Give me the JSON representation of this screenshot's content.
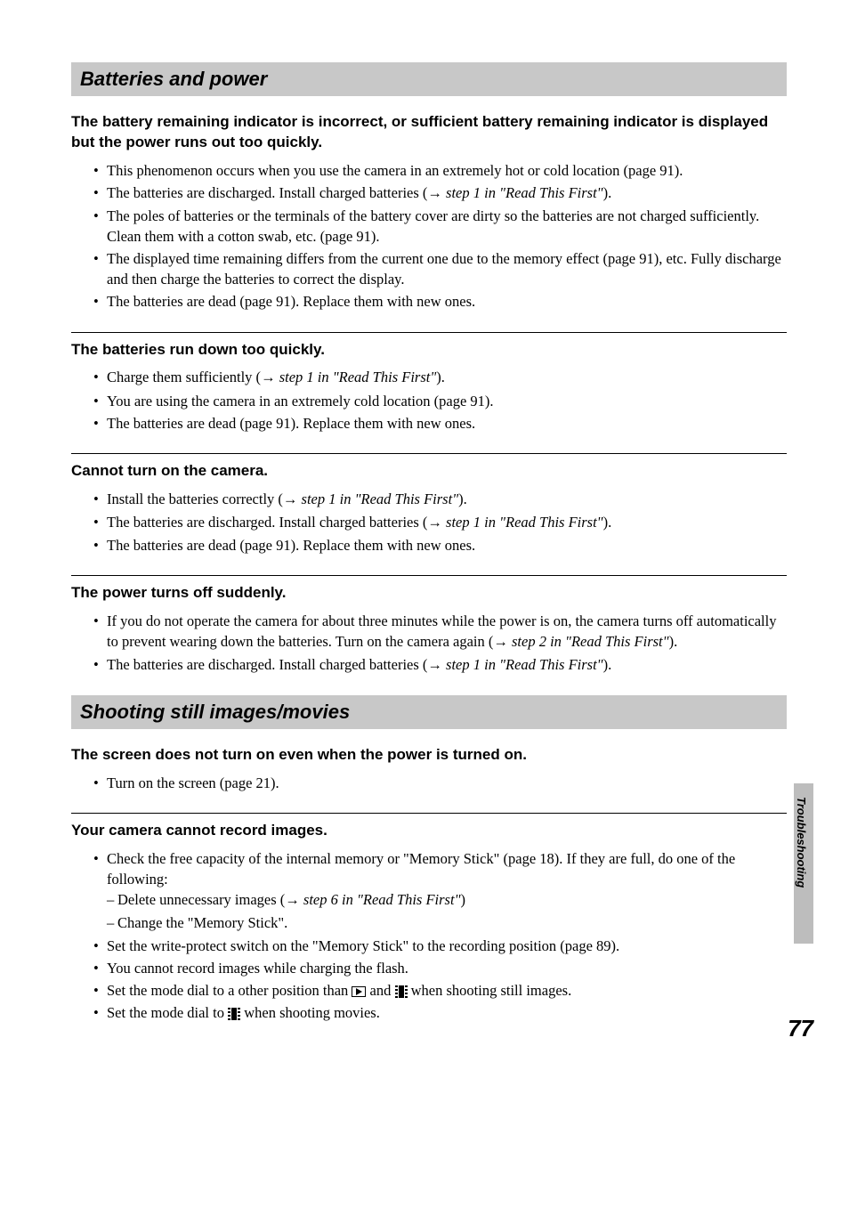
{
  "side_label": "Troubleshooting",
  "page_number": "77",
  "sections": {
    "batteries": {
      "header": "Batteries and power",
      "topics": {
        "t1": {
          "title": "The battery remaining indicator is incorrect, or sufficient battery remaining indicator is displayed but the power runs out too quickly.",
          "b1": "This phenomenon occurs when you use the camera in an extremely hot or cold location (page 91).",
          "b2a": "The batteries are discharged. Install charged batteries (",
          "b2b": "step 1 in \"Read This First\"",
          "b2c": ").",
          "b3": "The poles of batteries or the terminals of the battery cover are dirty so the batteries are not charged sufficiently. Clean them with a cotton swab, etc. (page 91).",
          "b4": "The displayed time remaining differs from the current one due to the memory effect (page 91), etc. Fully discharge and then charge the batteries to correct the display.",
          "b5": "The batteries are dead (page 91). Replace them with new ones."
        },
        "t2": {
          "title": "The batteries run down too quickly.",
          "b1a": "Charge them sufficiently (",
          "b1b": "step 1 in \"Read This First\"",
          "b1c": ").",
          "b2": "You are using the camera in an extremely cold location (page 91).",
          "b3": "The batteries are dead (page 91). Replace them with new ones."
        },
        "t3": {
          "title": "Cannot turn on the camera.",
          "b1a": "Install the batteries correctly (",
          "b1b": "step 1 in \"Read This First\"",
          "b1c": ").",
          "b2a": "The batteries are discharged. Install charged batteries (",
          "b2b": "step 1 in \"Read This First\"",
          "b2c": ").",
          "b3": "The batteries are dead (page 91). Replace them with new ones."
        },
        "t4": {
          "title": "The power turns off suddenly.",
          "b1a": "If you do not operate the camera for about three minutes while the power is on, the camera turns off automatically to prevent wearing down the batteries. Turn on the camera again (",
          "b1b": "step 2 in \"Read This First\"",
          "b1c": ").",
          "b2a": "The batteries are discharged. Install charged batteries (",
          "b2b": "step 1 in \"Read This First\"",
          "b2c": ")."
        }
      }
    },
    "shooting": {
      "header": "Shooting still images/movies",
      "topics": {
        "t1": {
          "title": "The screen does not turn on even when the power is turned on.",
          "b1": "Turn on the screen (page 21)."
        },
        "t2": {
          "title": "Your camera cannot record images.",
          "b1": "Check the free capacity of the internal memory or \"Memory Stick\" (page 18). If they are full, do one of the following:",
          "s1a": "Delete unnecessary images (",
          "s1b": "step 6 in \"Read This First\"",
          "s1c": ")",
          "s2": "Change the \"Memory Stick\".",
          "b2": "Set the write-protect switch on the \"Memory Stick\" to the recording position (page 89).",
          "b3": "You cannot record images while charging the flash.",
          "b4a": "Set the mode dial to a other position than ",
          "b4b": " and ",
          "b4c": " when shooting still images.",
          "b5a": "Set the mode dial to ",
          "b5b": " when shooting movies."
        }
      }
    }
  },
  "arrow_glyph": "→"
}
